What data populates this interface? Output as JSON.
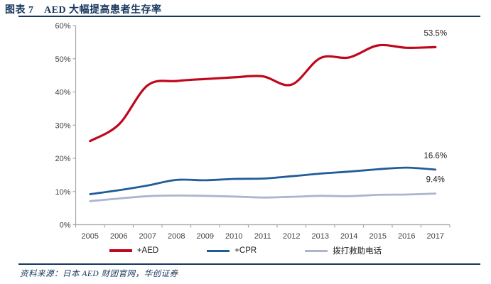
{
  "page": {
    "title": "图表 7　AED 大幅提高患者生存率",
    "source": "资料来源：日本 AED 财团官网，华创证券"
  },
  "colors": {
    "navy": "#17375E",
    "red": "#C0081C",
    "blue": "#1F5C99",
    "lavender": "#ACB4D0",
    "axis": "#A6A6A6",
    "tick_text": "#3F3F3F",
    "label_text": "#1A1A1A"
  },
  "chart_data": {
    "type": "line",
    "title": "图表 7　AED 大幅提高患者生存率",
    "categories": [
      "2005",
      "2006",
      "2007",
      "2008",
      "2009",
      "2010",
      "2011",
      "2012",
      "2013",
      "2014",
      "2015",
      "2016",
      "2017"
    ],
    "series": [
      {
        "name": "+AED",
        "slug": "aed",
        "color_key": "red",
        "end_label": "53.5%",
        "values": [
          25.2,
          30.2,
          42.0,
          43.3,
          43.9,
          44.4,
          44.7,
          42.2,
          50.2,
          50.4,
          54.0,
          53.3,
          53.5
        ]
      },
      {
        "name": "+CPR",
        "slug": "cpr",
        "color_key": "blue",
        "end_label": "16.6%",
        "values": [
          9.2,
          10.4,
          11.8,
          13.5,
          13.4,
          13.8,
          13.9,
          14.6,
          15.4,
          16.0,
          16.7,
          17.2,
          16.6
        ]
      },
      {
        "name": "拨打救助电话",
        "slug": "call",
        "color_key": "lavender",
        "end_label": "9.4%",
        "values": [
          7.1,
          7.9,
          8.6,
          8.8,
          8.7,
          8.5,
          8.2,
          8.4,
          8.7,
          8.6,
          9.0,
          9.1,
          9.4
        ]
      }
    ],
    "ylim": [
      0,
      60
    ],
    "ytick_step": 10,
    "ytick_suffix": "%",
    "grid": false,
    "smooth": true,
    "legend_position": "bottom"
  }
}
